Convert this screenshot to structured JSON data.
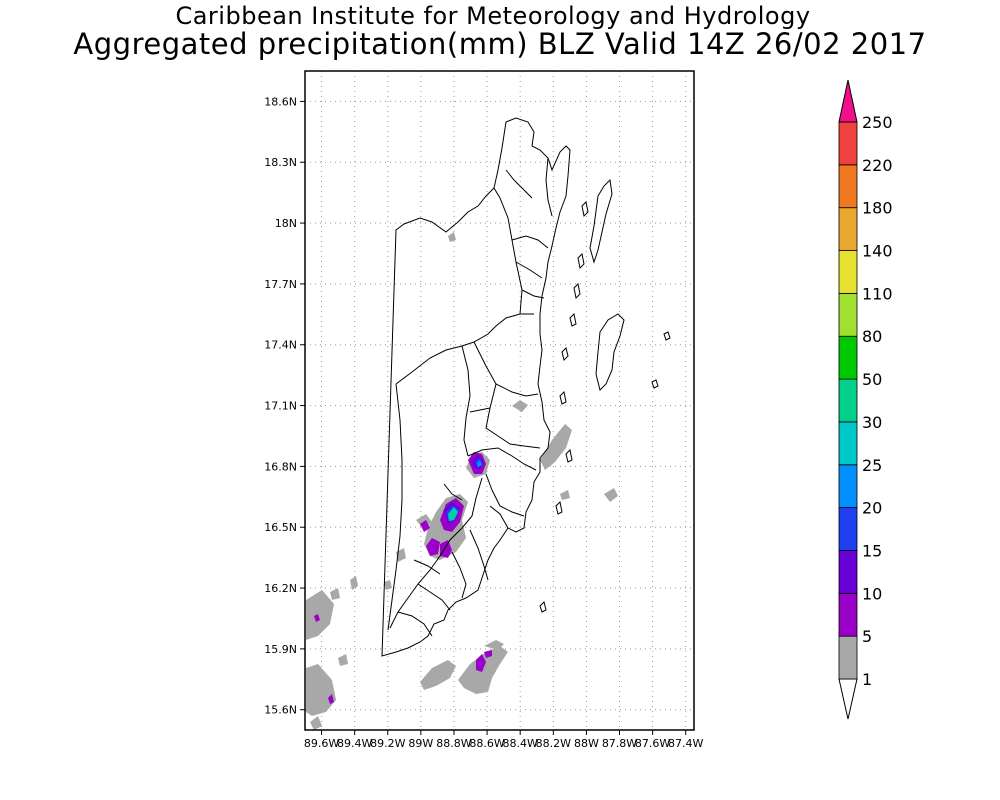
{
  "titles": {
    "line1": "Caribbean Institute for Meteorology and Hydrology",
    "line2": "Aggregated precipitation(mm) BLZ Valid 14Z 26/02 2017"
  },
  "map": {
    "lat_range": [
      15.5,
      18.75
    ],
    "lon_range": [
      -89.7,
      -87.35
    ],
    "lat_ticks": [
      "18.6N",
      "18.3N",
      "18N",
      "17.7N",
      "17.4N",
      "17.1N",
      "16.8N",
      "16.5N",
      "16.2N",
      "15.9N",
      "15.6N"
    ],
    "lat_values": [
      18.6,
      18.3,
      18.0,
      17.7,
      17.4,
      17.1,
      16.8,
      16.5,
      16.2,
      15.9,
      15.6
    ],
    "lon_ticks": [
      "89.6W",
      "89.4W",
      "89.2W",
      "89W",
      "88.8W",
      "88.6W",
      "88.4W",
      "88.2W",
      "88W",
      "87.8W",
      "87.6W",
      "87.4W"
    ],
    "lon_values": [
      -89.6,
      -89.4,
      -89.2,
      -89.0,
      -88.8,
      -88.6,
      -88.4,
      -88.2,
      -88.0,
      -87.8,
      -87.6,
      -87.4
    ],
    "grid": "dotted"
  },
  "colorbar": {
    "levels": [
      "1",
      "5",
      "10",
      "15",
      "20",
      "25",
      "30",
      "50",
      "80",
      "110",
      "140",
      "180",
      "220",
      "250"
    ],
    "colors": [
      "#a8a8a8",
      "#9a00c8",
      "#6a00d8",
      "#2040f0",
      "#0090ff",
      "#00c8c8",
      "#00d08a",
      "#00c800",
      "#a0e030",
      "#e8e030",
      "#e8a830",
      "#f07820",
      "#f04040",
      "#f0108a"
    ],
    "under_color": "#ffffff",
    "over_color": "#f0108a"
  }
}
